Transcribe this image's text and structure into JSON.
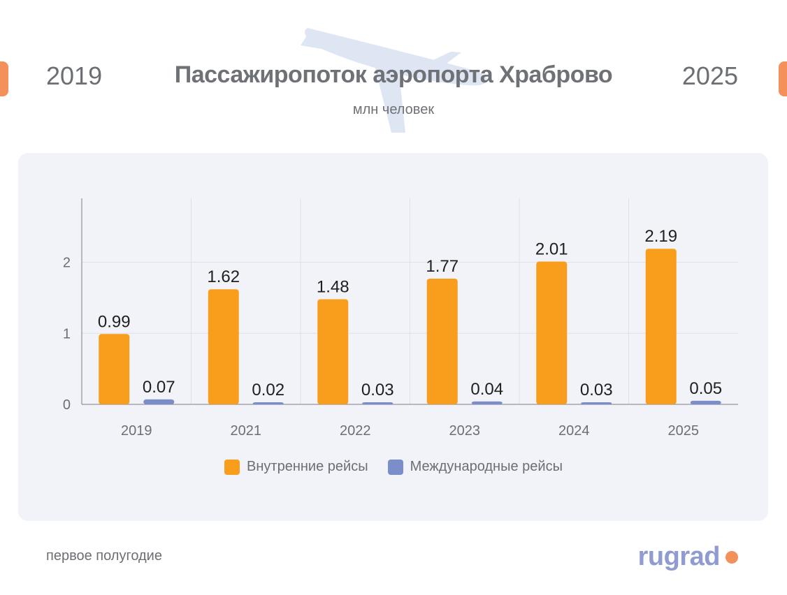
{
  "header": {
    "year_start": "2019",
    "year_end": "2025",
    "title": "Пассажиропоток аэропорта Храброво",
    "subtitle": "млн человек"
  },
  "chart_data": {
    "type": "bar",
    "categories": [
      "2019",
      "2021",
      "2022",
      "2023",
      "2024",
      "2025"
    ],
    "series": [
      {
        "name": "Внутренние рейсы",
        "values": [
          0.99,
          1.62,
          1.48,
          1.77,
          2.01,
          2.19
        ],
        "color": "#f99d1c"
      },
      {
        "name": "Международные рейсы",
        "values": [
          0.07,
          0.02,
          0.03,
          0.04,
          0.03,
          0.05
        ],
        "color": "#7b8ec9"
      }
    ],
    "yticks": [
      0,
      1,
      2
    ],
    "ylim": [
      0,
      2.9
    ],
    "grid": true,
    "legend": "bottom-center"
  },
  "footer": {
    "note": "первое полугодие",
    "logo_text": "rugrad",
    "logo_dot_color": "#f4905a"
  },
  "colors": {
    "accent_tab": "#f4905a",
    "panel_bg": "#f1f3f8"
  }
}
